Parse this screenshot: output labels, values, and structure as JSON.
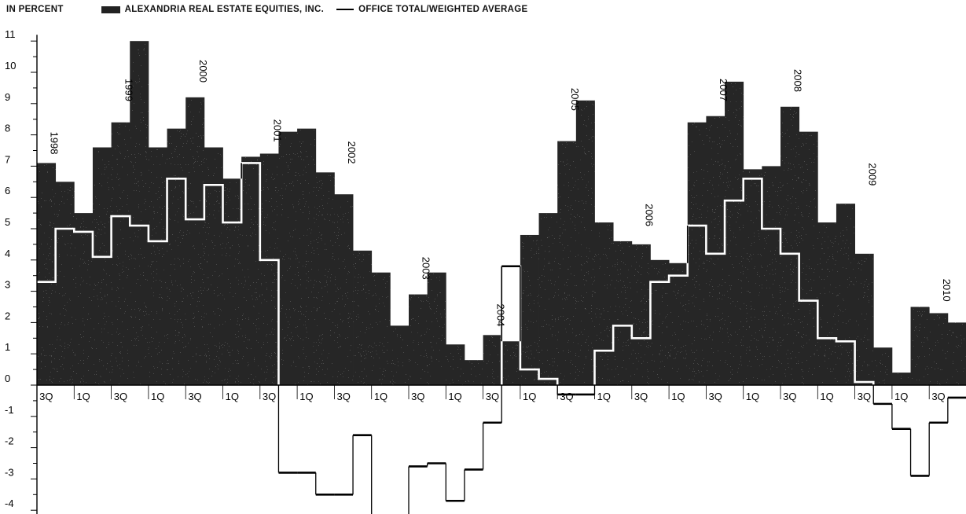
{
  "legend": {
    "unit_label": "IN PERCENT",
    "bar_series": "ALEXANDRIA REAL ESTATE EQUITIES, INC.",
    "line_series": "OFFICE TOTAL/WEIGHTED AVERAGE"
  },
  "colors": {
    "bar": "#262626",
    "line": "#000000",
    "background": "#ffffff"
  },
  "chart_data": {
    "type": "bar",
    "ylim": [
      -4.3,
      11.2
    ],
    "y_ticks": [
      11,
      10,
      9,
      8,
      7,
      6,
      5,
      4,
      3,
      2,
      1,
      0,
      -1,
      -2,
      -3,
      -4
    ],
    "quarters": [
      "3Q 1998",
      "4Q 1998",
      "1Q 1999",
      "2Q 1999",
      "3Q 1999",
      "4Q 1999",
      "1Q 2000",
      "2Q 2000",
      "3Q 2000",
      "4Q 2000",
      "1Q 2001",
      "2Q 2001",
      "3Q 2001",
      "4Q 2001",
      "1Q 2002",
      "2Q 2002",
      "3Q 2002",
      "4Q 2002",
      "1Q 2003",
      "2Q 2003",
      "3Q 2003",
      "4Q 2003",
      "1Q 2004",
      "2Q 2004",
      "3Q 2004",
      "4Q 2004",
      "1Q 2005",
      "2Q 2005",
      "3Q 2005",
      "4Q 2005",
      "1Q 2006",
      "2Q 2006",
      "3Q 2006",
      "4Q 2006",
      "1Q 2007",
      "2Q 2007",
      "3Q 2007",
      "4Q 2007",
      "1Q 2008",
      "2Q 2008",
      "3Q 2008",
      "4Q 2008",
      "1Q 2009",
      "2Q 2009",
      "3Q 2009",
      "4Q 2009",
      "1Q 2010",
      "2Q 2010",
      "3Q 2010",
      "4Q 2010"
    ],
    "x_tick_labels": [
      "3Q",
      "1Q",
      "3Q",
      "1Q",
      "3Q",
      "1Q",
      "3Q",
      "1Q",
      "3Q",
      "1Q",
      "3Q",
      "1Q",
      "3Q",
      "1Q",
      "3Q",
      "1Q",
      "3Q",
      "1Q",
      "3Q",
      "1Q",
      "3Q",
      "1Q",
      "3Q",
      "1Q",
      "3Q"
    ],
    "year_labels": [
      "1998",
      "1999",
      "2000",
      "2001",
      "2002",
      "2003",
      "2004",
      "2005",
      "2006",
      "2007",
      "2008",
      "2009",
      "2010"
    ],
    "series": [
      {
        "name": "ALEXANDRIA REAL ESTATE EQUITIES, INC.",
        "values": [
          7.1,
          6.5,
          5.5,
          7.6,
          8.4,
          11.0,
          7.6,
          8.2,
          9.2,
          7.6,
          6.6,
          7.3,
          7.4,
          8.1,
          8.2,
          6.8,
          6.1,
          4.3,
          3.6,
          1.9,
          2.9,
          3.6,
          1.3,
          0.8,
          1.6,
          1.4,
          4.8,
          5.5,
          7.8,
          9.1,
          5.2,
          4.6,
          4.5,
          4.0,
          3.9,
          8.4,
          8.6,
          9.7,
          6.9,
          7.0,
          8.9,
          8.1,
          5.2,
          5.8,
          4.2,
          1.2,
          0.4,
          2.5,
          2.3,
          2.0
        ],
        "plot_type": "bar"
      },
      {
        "name": "OFFICE TOTAL/WEIGHTED AVERAGE",
        "values": [
          3.3,
          5.0,
          4.9,
          4.1,
          5.4,
          5.1,
          4.6,
          6.6,
          5.3,
          6.4,
          5.2,
          7.1,
          4.0,
          -2.8,
          -2.8,
          -3.5,
          -3.5,
          -1.6,
          -4.7,
          -4.7,
          -2.6,
          -2.5,
          -3.7,
          -2.7,
          -1.2,
          3.8,
          0.5,
          0.2,
          -0.3,
          -0.3,
          1.1,
          1.9,
          1.5,
          3.3,
          3.5,
          5.1,
          4.2,
          5.9,
          6.6,
          5.0,
          4.2,
          2.7,
          1.5,
          1.4,
          0.1,
          -0.6,
          -1.4,
          -2.9,
          -1.2,
          -0.4
        ],
        "plot_type": "step-line"
      }
    ]
  }
}
